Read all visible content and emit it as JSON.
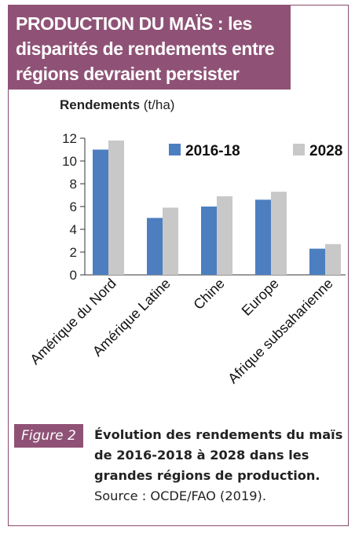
{
  "header": {
    "title_lines": [
      "PRODUCTION DU MAÏS : les",
      "disparités de rendements entre",
      "régions devraient persister"
    ]
  },
  "chart_data": {
    "type": "bar",
    "ylabel_bold": "Rendements",
    "ylabel_unit": "(t/ha)",
    "categories": [
      "Amérique du Nord",
      "Amérique Latine",
      "Chine",
      "Europe",
      "Afrique subsaharienne"
    ],
    "series": [
      {
        "name": "2016-18",
        "color": "#4d7fc0",
        "values": [
          11.0,
          5.0,
          6.0,
          6.6,
          2.3
        ]
      },
      {
        "name": "2028",
        "color": "#c8c8c8",
        "values": [
          11.8,
          5.9,
          6.9,
          7.3,
          2.7
        ]
      }
    ],
    "ylim": [
      0,
      12
    ],
    "yticks": [
      "0",
      "2",
      "4",
      "6",
      "8",
      "10",
      "12"
    ],
    "grid": false,
    "legend": "top-right"
  },
  "figure": {
    "label": "Figure 2",
    "caption_title": "Évolution des rendements du maïs de 2016-2018 à 2028 dans les grandes régions de production.",
    "source": "Source : OCDE/FAO (2019)."
  }
}
